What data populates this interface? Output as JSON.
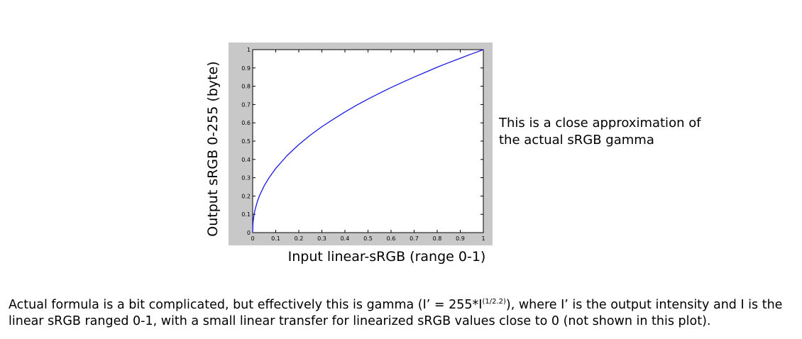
{
  "chart_data": {
    "type": "line",
    "title": "",
    "xlabel": "Input linear-sRGB (range 0-1)",
    "ylabel": "Output  sRGB 0-255 (byte)",
    "xlim": [
      0,
      1
    ],
    "ylim": [
      0,
      1
    ],
    "xticks": [
      "0",
      "0.1",
      "0.2",
      "0.3",
      "0.4",
      "0.5",
      "0.6",
      "0.7",
      "0.8",
      "0.9",
      "1"
    ],
    "yticks": [
      "0",
      "0.1",
      "0.2",
      "0.3",
      "0.4",
      "0.5",
      "0.6",
      "0.7",
      "0.8",
      "0.9",
      "1"
    ],
    "grid": false,
    "legend": "none",
    "gamma": 2.2,
    "series": [
      {
        "color": "#1a1ae6",
        "x": [
          0,
          0.001,
          0.002,
          0.005,
          0.01,
          0.02,
          0.03,
          0.05,
          0.07,
          0.1,
          0.15,
          0.2,
          0.25,
          0.3,
          0.35,
          0.4,
          0.45,
          0.5,
          0.55,
          0.6,
          0.65,
          0.7,
          0.75,
          0.8,
          0.85,
          0.9,
          0.95,
          1
        ],
        "y": [
          0,
          0.043,
          0.059,
          0.09,
          0.123,
          0.169,
          0.203,
          0.256,
          0.298,
          0.351,
          0.422,
          0.481,
          0.533,
          0.579,
          0.62,
          0.659,
          0.696,
          0.73,
          0.762,
          0.793,
          0.822,
          0.85,
          0.877,
          0.904,
          0.929,
          0.953,
          0.977,
          1
        ]
      }
    ],
    "plot_background": "#ffffff",
    "figure_background": "#c8c8c8"
  },
  "note": {
    "line1": "This is a close approximation of",
    "line2": "the actual sRGB gamma"
  },
  "caption": {
    "part1": "Actual formula is a bit complicated, but effectively this is gamma (I’ = 255*I",
    "superscript": "(1/2.2)",
    "part2": "), where I’ is the output intensity and I is the linear sRGB ranged 0-1, with a small linear transfer for linearized sRGB values close to 0 (not shown in this plot)."
  }
}
